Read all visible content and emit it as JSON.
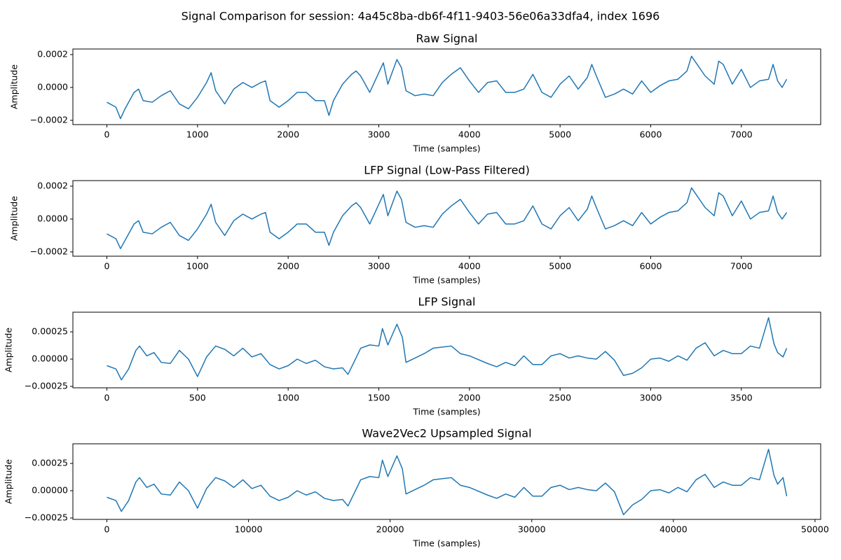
{
  "title": "Signal Comparison for session: 4a45c8ba-db6f-4f11-9403-56e06a33dfa4, index 1696",
  "chart_data": [
    {
      "type": "line",
      "title": "Raw Signal",
      "xlabel": "Time (samples)",
      "ylabel": "Amplitude",
      "color": "#1f77b4",
      "x": [
        0,
        100,
        150,
        200,
        300,
        350,
        400,
        500,
        600,
        700,
        800,
        900,
        1000,
        1100,
        1150,
        1200,
        1300,
        1400,
        1500,
        1600,
        1700,
        1750,
        1800,
        1900,
        2000,
        2100,
        2200,
        2300,
        2400,
        2450,
        2500,
        2600,
        2700,
        2750,
        2800,
        2900,
        3000,
        3050,
        3100,
        3200,
        3250,
        3300,
        3400,
        3500,
        3600,
        3700,
        3800,
        3900,
        4000,
        4100,
        4200,
        4300,
        4400,
        4500,
        4600,
        4700,
        4800,
        4900,
        5000,
        5100,
        5200,
        5300,
        5350,
        5400,
        5500,
        5600,
        5700,
        5800,
        5900,
        6000,
        6100,
        6200,
        6300,
        6400,
        6450,
        6500,
        6600,
        6700,
        6750,
        6800,
        6900,
        7000,
        7100,
        7200,
        7300,
        7350,
        7400,
        7450,
        7500
      ],
      "values": [
        -9e-05,
        -0.00012,
        -0.00019,
        -0.00013,
        -3e-05,
        -1e-05,
        -8e-05,
        -9e-05,
        -5e-05,
        -2e-05,
        -0.0001,
        -0.00013,
        -6e-05,
        3e-05,
        9e-05,
        -2e-05,
        -0.0001,
        -1e-05,
        3e-05,
        0.0,
        3e-05,
        4e-05,
        -8e-05,
        -0.00012,
        -8e-05,
        -3e-05,
        -3e-05,
        -8e-05,
        -8e-05,
        -0.00017,
        -8e-05,
        2e-05,
        8e-05,
        0.0001,
        7e-05,
        -3e-05,
        9e-05,
        0.00015,
        2e-05,
        0.00017,
        0.00012,
        -2e-05,
        -5e-05,
        -4e-05,
        -5e-05,
        3e-05,
        8e-05,
        0.00012,
        4e-05,
        -3e-05,
        3e-05,
        4e-05,
        -3e-05,
        -3e-05,
        -1e-05,
        8e-05,
        -3e-05,
        -6e-05,
        2e-05,
        7e-05,
        -1e-05,
        6e-05,
        0.00014,
        7e-05,
        -6e-05,
        -4e-05,
        -1e-05,
        -4e-05,
        4e-05,
        -3e-05,
        1e-05,
        4e-05,
        5e-05,
        0.0001,
        0.00019,
        0.00015,
        7e-05,
        2e-05,
        0.00016,
        0.00014,
        2e-05,
        0.00011,
        0.0,
        4e-05,
        5e-05,
        0.00014,
        4e-05,
        0.0,
        5e-05
      ],
      "xlim": [
        -375,
        7875
      ],
      "ylim": [
        -0.000226,
        0.000234
      ],
      "xticks": [
        0,
        1000,
        2000,
        3000,
        4000,
        5000,
        6000,
        7000
      ],
      "yticks": [
        {
          "value": -0.0002,
          "label": "−0.0002"
        },
        {
          "value": 0,
          "label": "0.0000"
        },
        {
          "value": 0.0002,
          "label": "0.0002"
        }
      ]
    },
    {
      "type": "line",
      "title": "LFP Signal (Low-Pass Filtered)",
      "xlabel": "Time (samples)",
      "ylabel": "Amplitude",
      "color": "#1f77b4",
      "x": [
        0,
        100,
        150,
        200,
        300,
        350,
        400,
        500,
        600,
        700,
        800,
        900,
        1000,
        1100,
        1150,
        1200,
        1300,
        1400,
        1500,
        1600,
        1700,
        1750,
        1800,
        1900,
        2000,
        2100,
        2200,
        2300,
        2400,
        2450,
        2500,
        2600,
        2700,
        2750,
        2800,
        2900,
        3000,
        3050,
        3100,
        3200,
        3250,
        3300,
        3400,
        3500,
        3600,
        3700,
        3800,
        3900,
        4000,
        4100,
        4200,
        4300,
        4400,
        4500,
        4600,
        4700,
        4800,
        4900,
        5000,
        5100,
        5200,
        5300,
        5350,
        5400,
        5500,
        5600,
        5700,
        5800,
        5900,
        6000,
        6100,
        6200,
        6300,
        6400,
        6450,
        6500,
        6600,
        6700,
        6750,
        6800,
        6900,
        7000,
        7100,
        7200,
        7300,
        7350,
        7400,
        7450,
        7500
      ],
      "values": [
        -9e-05,
        -0.00012,
        -0.00018,
        -0.00013,
        -3e-05,
        -1e-05,
        -8e-05,
        -9e-05,
        -5e-05,
        -2e-05,
        -0.0001,
        -0.00013,
        -6e-05,
        3e-05,
        9e-05,
        -2e-05,
        -0.0001,
        -1e-05,
        3e-05,
        0.0,
        3e-05,
        4e-05,
        -8e-05,
        -0.00012,
        -8e-05,
        -3e-05,
        -3e-05,
        -8e-05,
        -8e-05,
        -0.00016,
        -8e-05,
        2e-05,
        8e-05,
        0.0001,
        7e-05,
        -3e-05,
        9e-05,
        0.00015,
        2e-05,
        0.00017,
        0.00012,
        -2e-05,
        -5e-05,
        -4e-05,
        -5e-05,
        3e-05,
        8e-05,
        0.00012,
        4e-05,
        -3e-05,
        3e-05,
        4e-05,
        -3e-05,
        -3e-05,
        -1e-05,
        8e-05,
        -3e-05,
        -6e-05,
        2e-05,
        7e-05,
        -1e-05,
        6e-05,
        0.00014,
        7e-05,
        -6e-05,
        -4e-05,
        -1e-05,
        -4e-05,
        4e-05,
        -3e-05,
        1e-05,
        4e-05,
        5e-05,
        0.0001,
        0.00019,
        0.00015,
        7e-05,
        2e-05,
        0.00016,
        0.00014,
        2e-05,
        0.00011,
        0.0,
        4e-05,
        5e-05,
        0.00014,
        4e-05,
        0.0,
        4e-05
      ],
      "xlim": [
        -375,
        7875
      ],
      "ylim": [
        -0.000226,
        0.000234
      ],
      "xticks": [
        0,
        1000,
        2000,
        3000,
        4000,
        5000,
        6000,
        7000
      ],
      "yticks": [
        {
          "value": -0.0002,
          "label": "−0.0002"
        },
        {
          "value": 0,
          "label": "0.0000"
        },
        {
          "value": 0.0002,
          "label": "0.0002"
        }
      ]
    },
    {
      "type": "line",
      "title": "LFP Signal",
      "xlabel": "Time (samples)",
      "ylabel": "Amplitude",
      "color": "#1f77b4",
      "x": [
        0,
        50,
        80,
        120,
        160,
        180,
        220,
        260,
        300,
        350,
        400,
        450,
        500,
        550,
        600,
        650,
        700,
        750,
        800,
        850,
        900,
        950,
        1000,
        1050,
        1100,
        1150,
        1200,
        1250,
        1300,
        1330,
        1380,
        1400,
        1450,
        1500,
        1520,
        1550,
        1600,
        1630,
        1650,
        1700,
        1750,
        1800,
        1900,
        1950,
        2000,
        2100,
        2150,
        2200,
        2250,
        2300,
        2350,
        2400,
        2450,
        2500,
        2550,
        2600,
        2650,
        2700,
        2750,
        2800,
        2850,
        2900,
        2950,
        3000,
        3050,
        3100,
        3150,
        3200,
        3250,
        3300,
        3350,
        3400,
        3450,
        3500,
        3550,
        3600,
        3650,
        3680,
        3700,
        3730,
        3750
      ],
      "values": [
        -6e-05,
        -9e-05,
        -0.00019,
        -9e-05,
        8e-05,
        0.00012,
        3e-05,
        6e-05,
        -3e-05,
        -4e-05,
        8e-05,
        0.0,
        -0.00016,
        2e-05,
        0.00012,
        9e-05,
        3e-05,
        0.0001,
        2e-05,
        5e-05,
        -5e-05,
        -9e-05,
        -6e-05,
        0.0,
        -4e-05,
        -1e-05,
        -7e-05,
        -9e-05,
        -8e-05,
        -0.00014,
        3e-05,
        0.0001,
        0.00013,
        0.00012,
        0.00028,
        0.00013,
        0.00032,
        0.0002,
        -3e-05,
        1e-05,
        5e-05,
        0.0001,
        0.00012,
        5e-05,
        3e-05,
        -4e-05,
        -7e-05,
        -3e-05,
        -6e-05,
        3e-05,
        -5e-05,
        -5e-05,
        3e-05,
        5e-05,
        1e-05,
        3e-05,
        1e-05,
        0.0,
        7e-05,
        -1e-05,
        -0.00015,
        -0.00013,
        -8e-05,
        0.0,
        1e-05,
        -2e-05,
        3e-05,
        -1e-05,
        0.0001,
        0.00015,
        3e-05,
        8e-05,
        5e-05,
        5e-05,
        0.00012,
        0.0001,
        0.00038,
        0.00014,
        6e-05,
        2e-05,
        0.0001
      ],
      "xlim": [
        -187.5,
        3937.5
      ],
      "ylim": [
        -0.000263,
        0.00043
      ],
      "xticks": [
        0,
        500,
        1000,
        1500,
        2000,
        2500,
        3000,
        3500
      ],
      "yticks": [
        {
          "value": -0.00025,
          "label": "−0.00025"
        },
        {
          "value": 0,
          "label": "0.00000"
        },
        {
          "value": 0.00025,
          "label": "0.00025"
        }
      ]
    },
    {
      "type": "line",
      "title": "Wave2Vec2 Upsampled Signal",
      "xlabel": "Time (samples)",
      "ylabel": "Amplitude",
      "color": "#1f77b4",
      "x": [
        0,
        640,
        1024,
        1536,
        2048,
        2304,
        2816,
        3328,
        3840,
        4480,
        5120,
        5760,
        6400,
        7040,
        7680,
        8320,
        8960,
        9600,
        10240,
        10880,
        11520,
        12160,
        12800,
        13440,
        14080,
        14720,
        15360,
        16000,
        16640,
        17024,
        17664,
        17920,
        18560,
        19200,
        19456,
        19840,
        20480,
        20864,
        21120,
        21760,
        22400,
        23040,
        24320,
        24960,
        25600,
        26880,
        27520,
        28160,
        28800,
        29440,
        30080,
        30720,
        31360,
        32000,
        32640,
        33280,
        33920,
        34560,
        35200,
        35840,
        36480,
        37120,
        37760,
        38400,
        39040,
        39680,
        40320,
        40960,
        41600,
        42240,
        42880,
        43520,
        44160,
        44800,
        45440,
        46080,
        46720,
        47104,
        47360,
        47744,
        48000
      ],
      "values": [
        -6e-05,
        -9e-05,
        -0.00019,
        -9e-05,
        8e-05,
        0.00012,
        3e-05,
        6e-05,
        -3e-05,
        -4e-05,
        8e-05,
        0.0,
        -0.00016,
        2e-05,
        0.00012,
        9e-05,
        3e-05,
        0.0001,
        2e-05,
        5e-05,
        -5e-05,
        -9e-05,
        -6e-05,
        0.0,
        -4e-05,
        -1e-05,
        -7e-05,
        -9e-05,
        -8e-05,
        -0.00014,
        3e-05,
        0.0001,
        0.00013,
        0.00012,
        0.00028,
        0.00013,
        0.00032,
        0.0002,
        -3e-05,
        1e-05,
        5e-05,
        0.0001,
        0.00012,
        5e-05,
        3e-05,
        -4e-05,
        -7e-05,
        -3e-05,
        -6e-05,
        3e-05,
        -5e-05,
        -5e-05,
        3e-05,
        5e-05,
        1e-05,
        3e-05,
        1e-05,
        0.0,
        7e-05,
        -1e-05,
        -0.00022,
        -0.00013,
        -8e-05,
        0.0,
        1e-05,
        -2e-05,
        3e-05,
        -1e-05,
        0.0001,
        0.00015,
        3e-05,
        8e-05,
        5e-05,
        5e-05,
        0.00012,
        0.0001,
        0.00038,
        0.00014,
        6e-05,
        0.00012,
        -5e-05
      ],
      "xlim": [
        -2400,
        50400
      ],
      "ylim": [
        -0.000263,
        0.00043
      ],
      "xticks": [
        0,
        10000,
        20000,
        30000,
        40000,
        50000
      ],
      "yticks": [
        {
          "value": -0.00025,
          "label": "−0.00025"
        },
        {
          "value": 0,
          "label": "0.00000"
        },
        {
          "value": 0.00025,
          "label": "0.00025"
        }
      ]
    }
  ]
}
